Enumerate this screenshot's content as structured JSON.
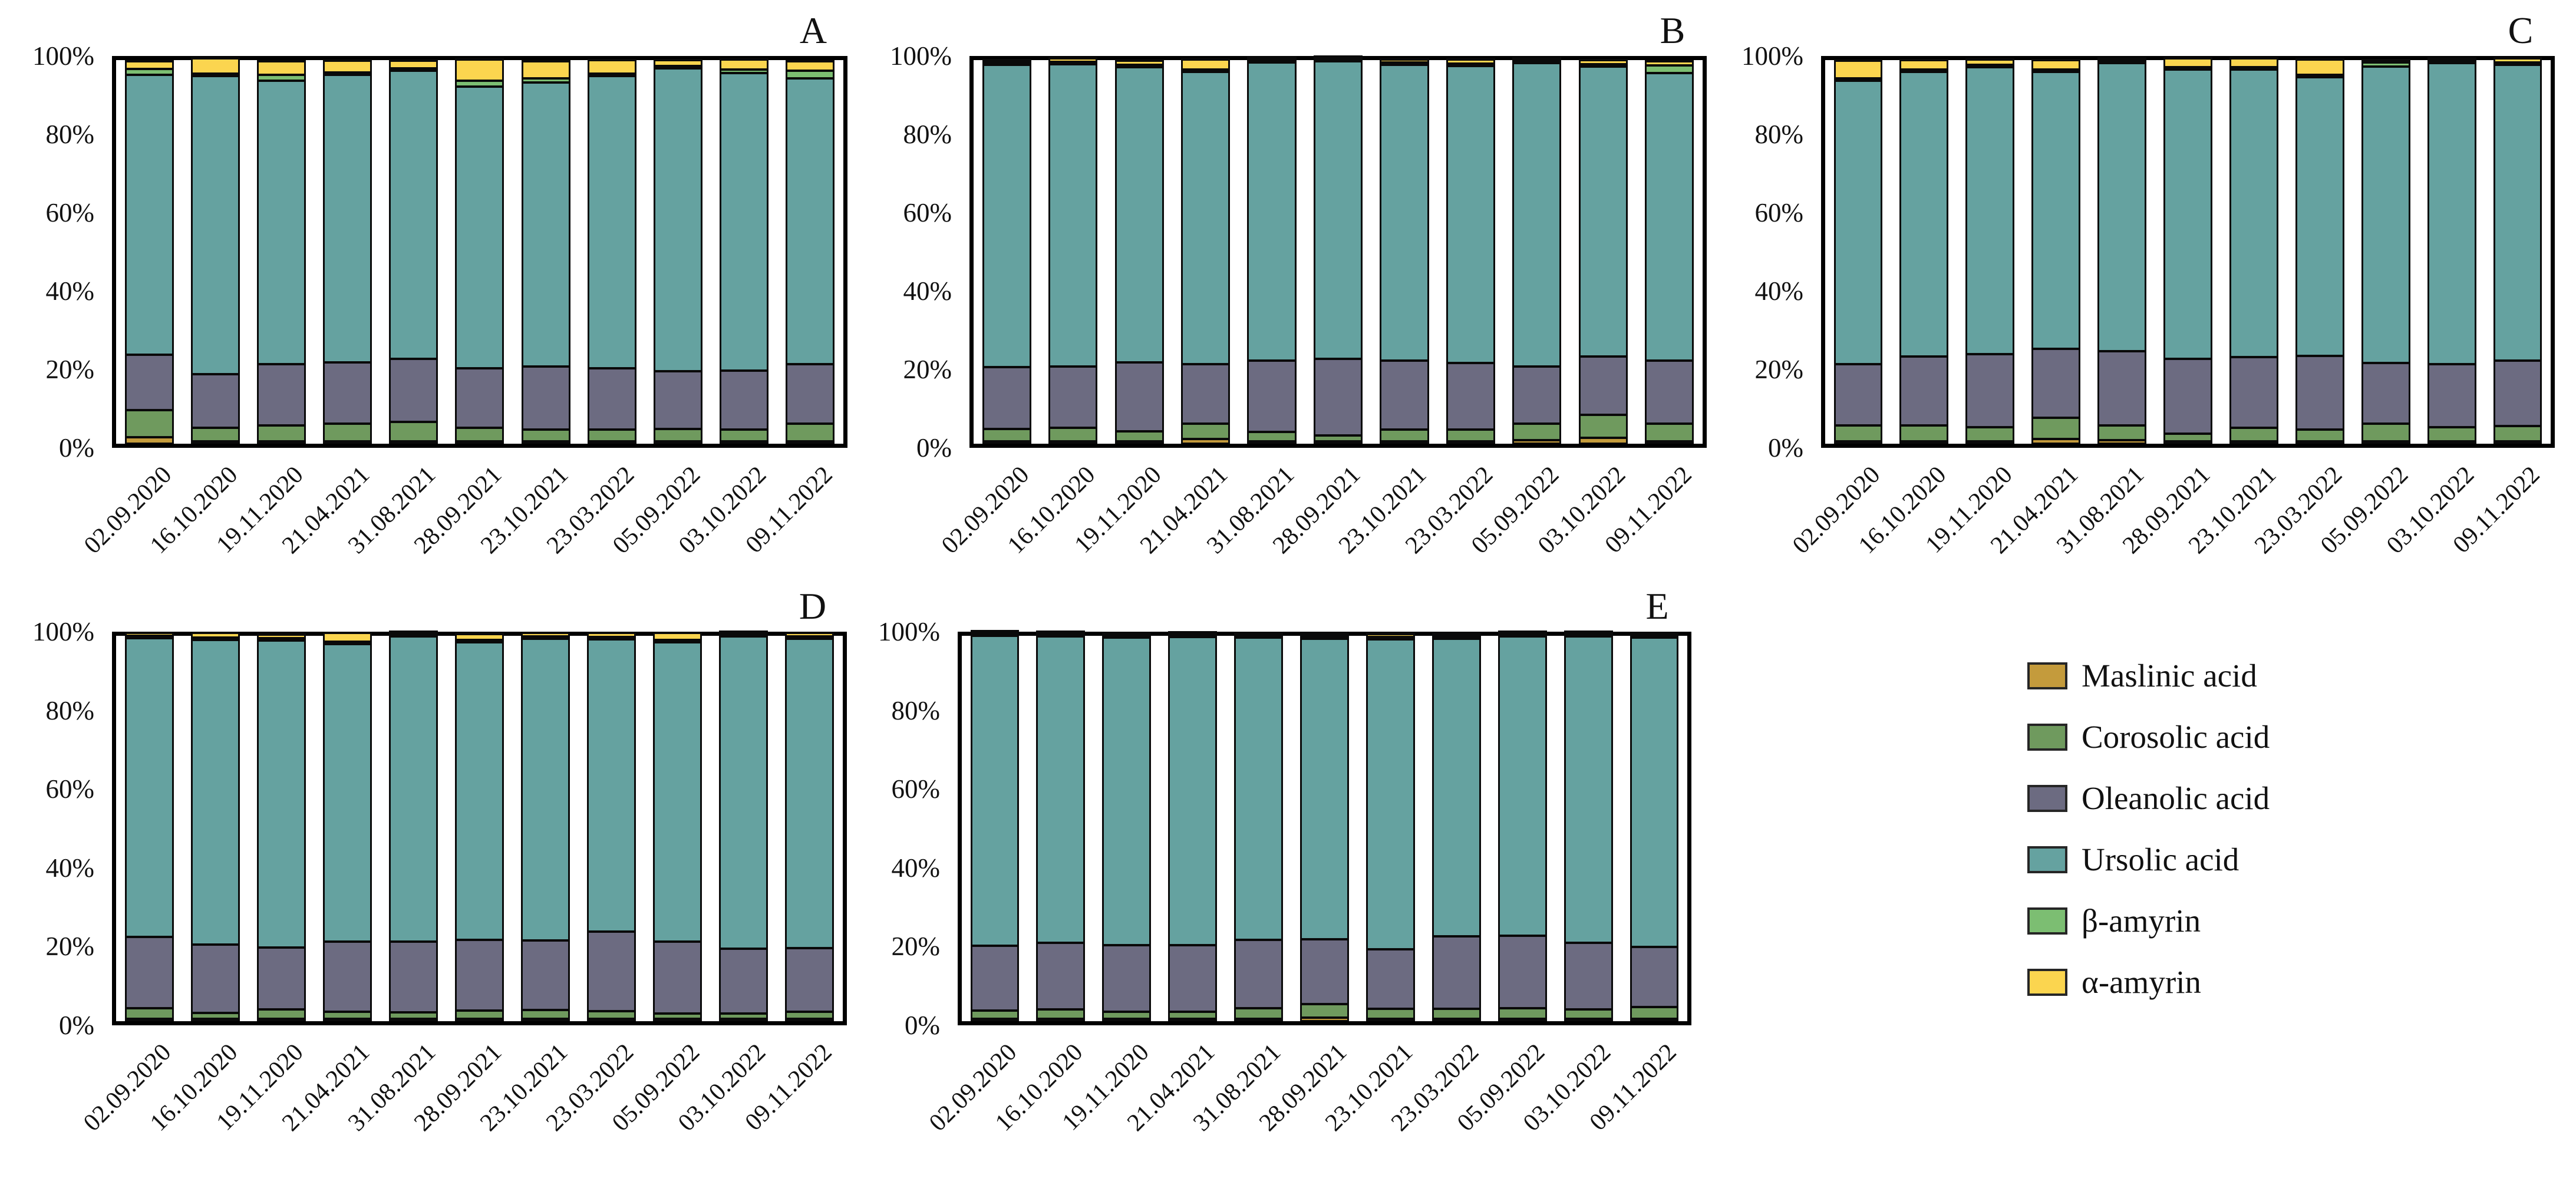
{
  "figure": {
    "y_ticks": [
      "100%",
      "80%",
      "60%",
      "40%",
      "20%",
      "0%"
    ],
    "dates": [
      "02.09.2020",
      "16.10.2020",
      "19.11.2020",
      "21.04.2021",
      "31.08.2021",
      "28.09.2021",
      "23.10.2021",
      "23.03.2022",
      "05.09.2022",
      "03.10.2022",
      "09.11.2022"
    ],
    "panel_letters": [
      "A",
      "B",
      "C",
      "D",
      "E"
    ],
    "colors": {
      "maslinic_acid": "#C49B3C",
      "corosolic_acid": "#6F9A5E",
      "oleanolic_acid": "#6C6B81",
      "ursolic_acid": "#65A2A0",
      "beta_amyrin": "#7CBE72",
      "alpha_amyrin": "#FBD54F",
      "outline": "#0a0a0a"
    },
    "legend": [
      {
        "label": "Maslinic acid",
        "color": "#C49B3C"
      },
      {
        "label": "Corosolic acid",
        "color": "#6F9A5E"
      },
      {
        "label": "Oleanolic acid",
        "color": "#6C6B81"
      },
      {
        "label": "Ursolic acid",
        "color": "#65A2A0"
      },
      {
        "label": "β-amyrin",
        "color": "#7CBE72"
      },
      {
        "label": "α-amyrin",
        "color": "#FBD54F"
      }
    ]
  },
  "chart_data": [
    {
      "type": "bar",
      "stacked": true,
      "units": "percent",
      "panel": "A",
      "ylim": [
        0,
        100
      ],
      "grid": false,
      "categories": [
        "02.09.2020",
        "16.10.2020",
        "19.11.2020",
        "21.04.2021",
        "31.08.2021",
        "28.09.2021",
        "23.10.2021",
        "23.03.2022",
        "05.09.2022",
        "03.10.2022",
        "09.11.2022"
      ],
      "series": [
        {
          "name": "Maslinic acid",
          "color": "#C49B3C",
          "values": [
            2,
            0.5,
            1,
            1,
            1,
            0.5,
            1,
            0.7,
            0.7,
            0.5,
            1
          ]
        },
        {
          "name": "Corosolic acid",
          "color": "#6F9A5E",
          "values": [
            7,
            3.5,
            4,
            4.5,
            5,
            3.5,
            3,
            3,
            3.3,
            3,
            4.5
          ]
        },
        {
          "name": "Oleanolic acid",
          "color": "#6C6B81",
          "values": [
            14.5,
            14,
            16,
            16,
            16.5,
            15.5,
            16.5,
            16,
            15,
            15.5,
            15.5
          ]
        },
        {
          "name": "Ursolic acid",
          "color": "#65A2A0",
          "values": [
            73,
            77.7,
            74,
            75,
            75,
            73.5,
            74,
            76.3,
            79,
            77.5,
            74.5
          ]
        },
        {
          "name": "β-amyrin",
          "color": "#7CBE72",
          "values": [
            1.5,
            0.3,
            1.5,
            0.5,
            0.5,
            1.5,
            1,
            0.5,
            0.5,
            1,
            2
          ]
        },
        {
          "name": "α-amyrin",
          "color": "#FBD54F",
          "values": [
            2,
            4,
            3.5,
            3,
            2,
            5.5,
            4.5,
            3.5,
            1.5,
            2.5,
            2.5
          ]
        }
      ]
    },
    {
      "type": "bar",
      "stacked": true,
      "units": "percent",
      "panel": "B",
      "ylim": [
        0,
        100
      ],
      "grid": false,
      "categories": [
        "02.09.2020",
        "16.10.2020",
        "19.11.2020",
        "21.04.2021",
        "31.08.2021",
        "28.09.2021",
        "23.10.2021",
        "23.03.2022",
        "05.09.2022",
        "03.10.2022",
        "09.11.2022"
      ],
      "series": [
        {
          "name": "Maslinic acid",
          "color": "#C49B3C",
          "values": [
            0.7,
            0.5,
            1,
            1.5,
            0.8,
            0.3,
            0.8,
            0.7,
            1.2,
            1.8,
            1
          ]
        },
        {
          "name": "Corosolic acid",
          "color": "#6F9A5E",
          "values": [
            3.3,
            3.5,
            2.5,
            4,
            2.5,
            1.5,
            3,
            3,
            4.3,
            6,
            4.5
          ]
        },
        {
          "name": "Oleanolic acid",
          "color": "#6C6B81",
          "values": [
            16,
            16,
            18,
            15.5,
            18.5,
            20,
            18,
            17.5,
            15,
            15.2,
            16.5
          ]
        },
        {
          "name": "Ursolic acid",
          "color": "#65A2A0",
          "values": [
            78.8,
            78.8,
            77,
            76.3,
            77.8,
            77.6,
            77.2,
            77.3,
            79.1,
            75.7,
            75
          ]
        },
        {
          "name": "β-amyrin",
          "color": "#7CBE72",
          "values": [
            0.7,
            0.2,
            0.5,
            0.2,
            0.2,
            0.2,
            0.2,
            0.3,
            0.2,
            0.3,
            2
          ]
        },
        {
          "name": "α-amyrin",
          "color": "#FBD54F",
          "values": [
            0.5,
            1,
            1,
            2.5,
            0.2,
            0.4,
            0.8,
            1.2,
            0.2,
            1,
            1
          ]
        }
      ]
    },
    {
      "type": "bar",
      "stacked": true,
      "units": "percent",
      "panel": "C",
      "ylim": [
        0,
        100
      ],
      "grid": false,
      "categories": [
        "02.09.2020",
        "16.10.2020",
        "19.11.2020",
        "21.04.2021",
        "31.08.2021",
        "28.09.2021",
        "23.10.2021",
        "23.03.2022",
        "05.09.2022",
        "03.10.2022",
        "09.11.2022"
      ],
      "series": [
        {
          "name": "Maslinic acid",
          "color": "#C49B3C",
          "values": [
            1,
            1,
            0.7,
            1.5,
            1.2,
            0.5,
            0.5,
            0.7,
            1,
            0.8,
            0.5
          ]
        },
        {
          "name": "Corosolic acid",
          "color": "#6F9A5E",
          "values": [
            4,
            4,
            3.7,
            5.5,
            3.8,
            2,
            3.5,
            3,
            4.5,
            3.7,
            4
          ]
        },
        {
          "name": "Oleanolic acid",
          "color": "#6C6B81",
          "values": [
            16,
            18,
            19,
            18,
            19.5,
            19.5,
            18.5,
            19.3,
            15.8,
            16.5,
            17
          ]
        },
        {
          "name": "Ursolic acid",
          "color": "#65A2A0",
          "values": [
            74,
            74.2,
            74.8,
            72.2,
            75,
            75.5,
            74.9,
            72.7,
            77.4,
            78.4,
            77.2
          ]
        },
        {
          "name": "β-amyrin",
          "color": "#7CBE72",
          "values": [
            0.5,
            0.3,
            0.3,
            0.3,
            0.2,
            0.3,
            0.3,
            0.3,
            1,
            0.2,
            0.3
          ]
        },
        {
          "name": "α-amyrin",
          "color": "#FBD54F",
          "values": [
            4.5,
            2.5,
            1.5,
            2.5,
            0.3,
            2.2,
            2.3,
            4,
            0.3,
            0.4,
            1
          ]
        }
      ]
    },
    {
      "type": "bar",
      "stacked": true,
      "units": "percent",
      "panel": "D",
      "ylim": [
        0,
        100
      ],
      "grid": false,
      "categories": [
        "02.09.2020",
        "16.10.2020",
        "19.11.2020",
        "21.04.2021",
        "31.08.2021",
        "28.09.2021",
        "23.10.2021",
        "23.03.2022",
        "05.09.2022",
        "03.10.2022",
        "09.11.2022"
      ],
      "series": [
        {
          "name": "Maslinic acid",
          "color": "#C49B3C",
          "values": [
            0.3,
            0.2,
            0.5,
            0.3,
            0.3,
            0.5,
            0.3,
            0.3,
            0.2,
            0.2,
            0.2
          ]
        },
        {
          "name": "Corosolic acid",
          "color": "#6F9A5E",
          "values": [
            2.7,
            1.5,
            2.5,
            1.8,
            1.7,
            2.2,
            2.3,
            2,
            1.4,
            1.4,
            1.9
          ]
        },
        {
          "name": "Oleanolic acid",
          "color": "#6C6B81",
          "values": [
            18.5,
            17.7,
            16,
            18.3,
            18.3,
            18.3,
            18,
            20.7,
            18.7,
            16.8,
            16.4
          ]
        },
        {
          "name": "Ursolic acid",
          "color": "#65A2A0",
          "values": [
            77.6,
            79.1,
            79.6,
            77.2,
            79.2,
            77.2,
            78.4,
            75.8,
            77.6,
            81,
            80.3
          ]
        },
        {
          "name": "β-amyrin",
          "color": "#7CBE72",
          "values": [
            0.2,
            0.2,
            0.4,
            0.2,
            0.2,
            0.3,
            0.2,
            0.2,
            0.3,
            0.4,
            0.2
          ]
        },
        {
          "name": "α-amyrin",
          "color": "#FBD54F",
          "values": [
            0.7,
            1.3,
            1,
            2.2,
            0.3,
            1.5,
            0.8,
            1,
            1.8,
            0.2,
            1
          ]
        }
      ]
    },
    {
      "type": "bar",
      "stacked": true,
      "units": "percent",
      "panel": "E",
      "ylim": [
        0,
        100
      ],
      "grid": false,
      "categories": [
        "02.09.2020",
        "16.10.2020",
        "19.11.2020",
        "21.04.2021",
        "31.08.2021",
        "28.09.2021",
        "23.10.2021",
        "23.03.2022",
        "05.09.2022",
        "03.10.2022",
        "09.11.2022"
      ],
      "series": [
        {
          "name": "Maslinic acid",
          "color": "#C49B3C",
          "values": [
            0.3,
            0.3,
            0.3,
            0.2,
            0.8,
            1.2,
            0.6,
            0.8,
            0.4,
            0.3,
            0.4
          ]
        },
        {
          "name": "Corosolic acid",
          "color": "#6F9A5E",
          "values": [
            2.1,
            2.4,
            1.9,
            1.8,
            2.7,
            3.5,
            2.6,
            2.6,
            2.7,
            2.4,
            3
          ]
        },
        {
          "name": "Oleanolic acid",
          "color": "#6C6B81",
          "values": [
            16.9,
            17.3,
            17.2,
            17.3,
            17.8,
            16.9,
            15.5,
            18.8,
            18.9,
            17.3,
            15.6
          ]
        },
        {
          "name": "Ursolic acid",
          "color": "#65A2A0",
          "values": [
            80.4,
            79.6,
            79.9,
            80,
            78.4,
            77.9,
            80.4,
            77.3,
            77.7,
            79.6,
            80.4
          ]
        },
        {
          "name": "β-amyrin",
          "color": "#7CBE72",
          "values": [
            0.1,
            0.1,
            0.1,
            0.1,
            0.1,
            0.1,
            0.1,
            0.1,
            0.1,
            0.1,
            0.2
          ]
        },
        {
          "name": "α-amyrin",
          "color": "#FBD54F",
          "values": [
            0.2,
            0.3,
            0.6,
            0.6,
            0.2,
            0.4,
            0.8,
            0.4,
            0.2,
            0.3,
            0.4
          ]
        }
      ]
    }
  ]
}
